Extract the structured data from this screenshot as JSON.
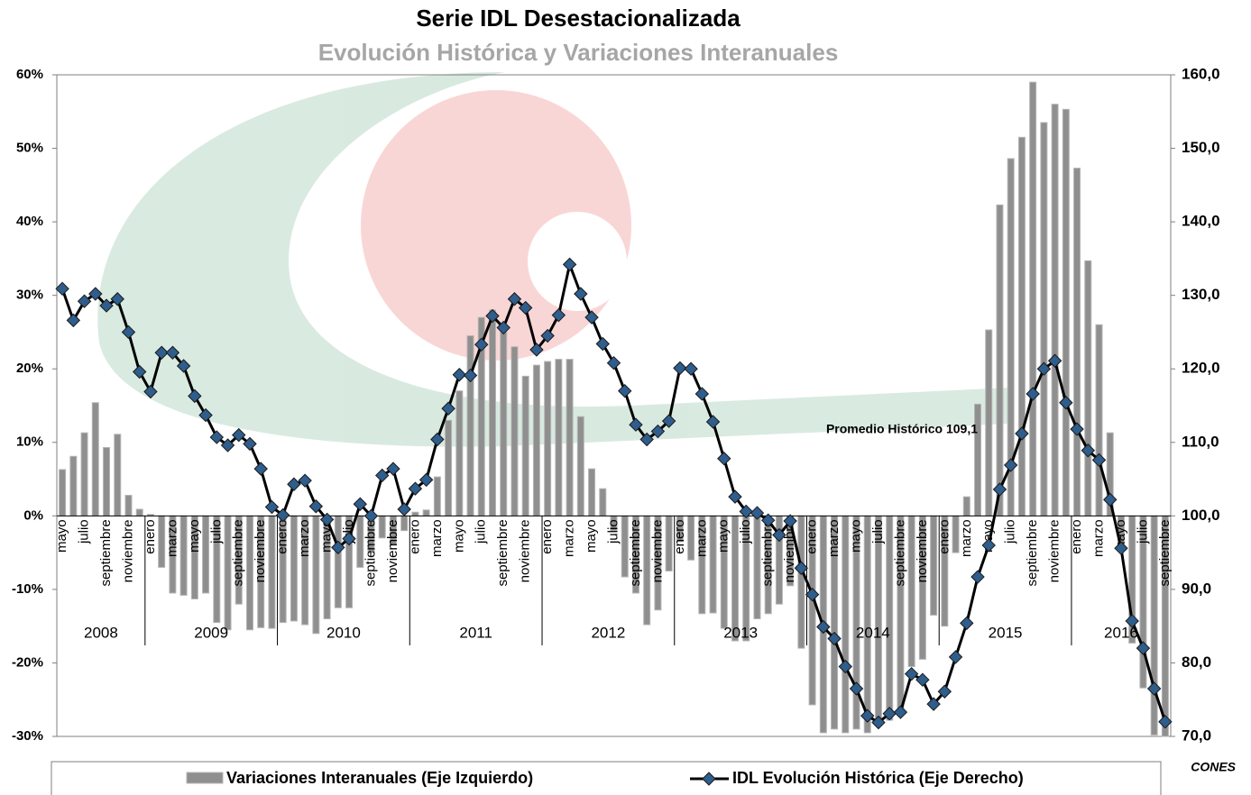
{
  "chart_data": {
    "type": "combo",
    "title": "Serie IDL Desestacionalizada",
    "subtitle": "Evolución Histórica y Variaciones Interanuales",
    "annotation": "Promedio Histórico  109,1",
    "source": "CONES",
    "categories": [
      "mayo",
      null,
      "julio",
      null,
      "septiembre",
      null,
      "noviembre",
      null,
      "enero",
      null,
      "marzo",
      null,
      "mayo",
      null,
      "julio",
      null,
      "septiembre",
      null,
      "noviembre",
      null,
      "enero",
      null,
      "marzo",
      null,
      "mayo",
      null,
      "julio",
      null,
      "septiembre",
      null,
      "noviembre",
      null,
      "enero",
      null,
      "marzo",
      null,
      "mayo",
      null,
      "julio",
      null,
      "septiembre",
      null,
      "noviembre",
      null,
      "enero",
      null,
      "marzo",
      null,
      "mayo",
      null,
      "julio",
      null,
      "septiembre",
      null,
      "noviembre",
      null,
      "enero",
      null,
      "marzo",
      null,
      "mayo",
      null,
      "julio",
      null,
      "septiembre",
      null,
      "noviembre",
      null,
      "enero",
      null,
      "marzo",
      null,
      "mayo",
      null,
      "julio",
      null,
      "septiembre",
      null,
      "noviembre",
      null,
      "enero",
      null,
      "marzo",
      null,
      "mayo",
      null,
      "julio",
      null,
      "septiembre",
      null,
      "noviembre",
      null,
      "enero",
      null,
      "marzo",
      null,
      "mayo",
      null,
      "julio",
      null,
      "septiembre"
    ],
    "years": [
      "2008",
      "2009",
      "2010",
      "2011",
      "2012",
      "2013",
      "2014",
      "2015",
      "2016"
    ],
    "ylim": [
      -30,
      60
    ],
    "yticks": [
      {
        "value": -30,
        "label": "-30%"
      },
      {
        "value": -20,
        "label": "-20%"
      },
      {
        "value": -10,
        "label": "-10%"
      },
      {
        "value": 0,
        "label": "0%"
      },
      {
        "value": 10,
        "label": "10%"
      },
      {
        "value": 20,
        "label": "20%"
      },
      {
        "value": 30,
        "label": "30%"
      },
      {
        "value": 40,
        "label": "40%"
      },
      {
        "value": 50,
        "label": "50%"
      },
      {
        "value": 60,
        "label": "60%"
      }
    ],
    "y2lim": [
      70,
      160
    ],
    "y2ticks": [
      {
        "value": 70,
        "label": "70,0"
      },
      {
        "value": 80,
        "label": "80,0"
      },
      {
        "value": 90,
        "label": "90,0"
      },
      {
        "value": 100,
        "label": "100,0"
      },
      {
        "value": 110,
        "label": "110,0"
      },
      {
        "value": 120,
        "label": "120,0"
      },
      {
        "value": 130,
        "label": "130,0"
      },
      {
        "value": 140,
        "label": "140,0"
      },
      {
        "value": 150,
        "label": "150,0"
      },
      {
        "value": 160,
        "label": "160,0"
      }
    ],
    "series": [
      {
        "name": "Variaciones Interanuales (Eje Izquierdo)",
        "type": "bar",
        "axis": "y",
        "color": "#8f8f8f",
        "values": [
          6.3,
          8.1,
          11.3,
          15.4,
          9.3,
          11.1,
          2.8,
          0.9,
          0.2,
          -7,
          -10.5,
          -10.8,
          -11.3,
          -10.5,
          -14.5,
          -15.5,
          -12,
          -15.5,
          -15.2,
          -15.3,
          -14.5,
          -14.3,
          -14.8,
          -16,
          -14,
          -12.5,
          -12.5,
          -7,
          -5,
          -3,
          -4,
          -2,
          0.5,
          0.8,
          5.3,
          13,
          17,
          24.5,
          27,
          28,
          26,
          23,
          19,
          20.5,
          21,
          21.3,
          21.3,
          13.5,
          6.4,
          3.7,
          -2,
          -8.3,
          -10.5,
          -14.8,
          -12.8,
          -7.5,
          -3.5,
          -6,
          -13.3,
          -13.2,
          -15.3,
          -17,
          -17,
          -14,
          -13.3,
          -12,
          -9.5,
          -18,
          -25.7,
          -29.5,
          -29,
          -29.5,
          -29,
          -29.5,
          -28,
          -27.8,
          -26.5,
          -20.5,
          -19.5,
          -13.5,
          -15,
          -5,
          2.6,
          15.2,
          25.3,
          42.3,
          48.6,
          51.5,
          59,
          53.5,
          56,
          55.3,
          47.3,
          34.7,
          26,
          11.3,
          -4,
          -17.3,
          -23.4,
          -29.8,
          -30
        ]
      },
      {
        "name": "IDL Evolución Histórica (Eje Derecho)",
        "type": "line",
        "axis": "y2",
        "color": "#000000",
        "marker_color": "#2f5d8c",
        "values": [
          130.9,
          126.6,
          129.2,
          130.2,
          128.6,
          129.5,
          125.0,
          119.6,
          116.9,
          122.2,
          122.2,
          120.4,
          116.3,
          113.7,
          110.7,
          109.6,
          111.0,
          109.8,
          106.4,
          101.2,
          100.1,
          104.3,
          104.8,
          101.3,
          99.5,
          95.7,
          96.9,
          101.6,
          100.0,
          105.5,
          106.4,
          100.9,
          103.7,
          104.9,
          110.4,
          114.6,
          119.2,
          119.1,
          123.3,
          127.2,
          125.6,
          129.5,
          128.3,
          122.6,
          124.5,
          127.3,
          134.2,
          130.2,
          127.0,
          123.4,
          120.8,
          117.0,
          112.4,
          110.4,
          111.5,
          112.9,
          120.1,
          120.0,
          116.6,
          112.8,
          107.8,
          102.6,
          100.6,
          100.4,
          99.4,
          97.4,
          99.3,
          92.9,
          89.3,
          84.9,
          83.3,
          79.5,
          76.5,
          72.8,
          71.9,
          73.1,
          73.3,
          78.5,
          77.7,
          74.4,
          76.1,
          80.8,
          85.4,
          91.7,
          96.0,
          103.6,
          106.9,
          111.2,
          116.6,
          120.0,
          121.1,
          115.4,
          111.8,
          108.9,
          107.6,
          102.2,
          95.6,
          85.7,
          82.0,
          76.5,
          72.0
        ]
      }
    ]
  }
}
